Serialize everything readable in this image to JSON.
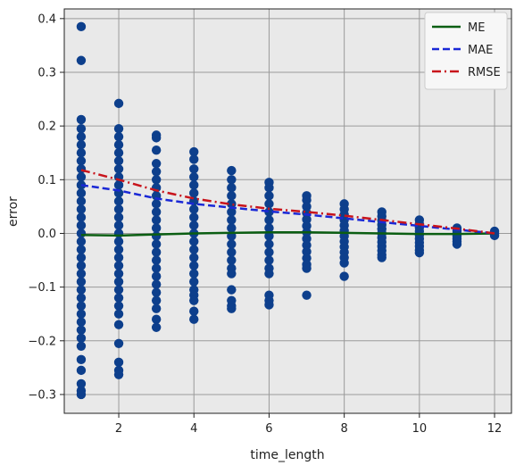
{
  "chart_data": {
    "type": "scatter",
    "xlabel": "time_length",
    "ylabel": "error",
    "xlim": [
      0.55,
      12.45
    ],
    "ylim": [
      -0.335,
      0.418
    ],
    "xticks": [
      2,
      4,
      6,
      8,
      10,
      12
    ],
    "xtick_labels": [
      "2",
      "4",
      "6",
      "8",
      "10",
      "12"
    ],
    "yticks": [
      -0.3,
      -0.2,
      -0.1,
      0.0,
      0.1,
      0.2,
      0.3,
      0.4
    ],
    "ytick_labels": [
      "−0.3",
      "−0.2",
      "−0.1",
      "0.0",
      "0.1",
      "0.2",
      "0.3",
      "0.4"
    ],
    "grid": true,
    "legend_position": "top-right",
    "background": "#e9e9e9",
    "scatter": {
      "color": "#0d3f8c",
      "points": [
        {
          "x": 1,
          "values": [
            0.385,
            0.322,
            0.212,
            0.195,
            0.18,
            0.165,
            0.15,
            0.135,
            0.12,
            0.105,
            0.09,
            0.075,
            0.06,
            0.045,
            0.03,
            0.015,
            0.0,
            -0.015,
            -0.03,
            -0.045,
            -0.06,
            -0.075,
            -0.09,
            -0.105,
            -0.12,
            -0.135,
            -0.15,
            -0.165,
            -0.18,
            -0.195,
            -0.21,
            -0.235,
            -0.255,
            -0.28,
            -0.293,
            -0.3
          ]
        },
        {
          "x": 2,
          "values": [
            0.242,
            0.195,
            0.18,
            0.165,
            0.15,
            0.135,
            0.12,
            0.105,
            0.09,
            0.075,
            0.06,
            0.045,
            0.03,
            0.015,
            0.0,
            -0.015,
            -0.03,
            -0.045,
            -0.06,
            -0.075,
            -0.09,
            -0.105,
            -0.12,
            -0.135,
            -0.15,
            -0.17,
            -0.205,
            -0.24,
            -0.255,
            -0.263
          ]
        },
        {
          "x": 3,
          "values": [
            0.183,
            0.178,
            0.155,
            0.13,
            0.115,
            0.1,
            0.085,
            0.07,
            0.055,
            0.04,
            0.025,
            0.01,
            -0.005,
            -0.02,
            -0.035,
            -0.05,
            -0.065,
            -0.08,
            -0.095,
            -0.11,
            -0.125,
            -0.14,
            -0.16,
            -0.175
          ]
        },
        {
          "x": 4,
          "values": [
            0.152,
            0.138,
            0.12,
            0.105,
            0.09,
            0.075,
            0.06,
            0.045,
            0.03,
            0.015,
            0.0,
            -0.015,
            -0.03,
            -0.045,
            -0.06,
            -0.075,
            -0.09,
            -0.105,
            -0.115,
            -0.125,
            -0.145,
            -0.16
          ]
        },
        {
          "x": 5,
          "values": [
            0.117,
            0.1,
            0.085,
            0.07,
            0.055,
            0.04,
            0.025,
            0.01,
            -0.005,
            -0.02,
            -0.035,
            -0.05,
            -0.065,
            -0.075,
            -0.105,
            -0.125,
            -0.135,
            -0.14
          ]
        },
        {
          "x": 6,
          "values": [
            0.095,
            0.085,
            0.07,
            0.055,
            0.04,
            0.025,
            0.01,
            -0.005,
            -0.02,
            -0.035,
            -0.05,
            -0.065,
            -0.075,
            -0.115,
            -0.125,
            -0.133
          ]
        },
        {
          "x": 7,
          "values": [
            0.07,
            0.062,
            0.05,
            0.038,
            0.026,
            0.014,
            0.002,
            -0.01,
            -0.022,
            -0.034,
            -0.046,
            -0.058,
            -0.065,
            -0.115
          ]
        },
        {
          "x": 8,
          "values": [
            0.055,
            0.045,
            0.035,
            0.025,
            0.015,
            0.005,
            -0.005,
            -0.015,
            -0.025,
            -0.035,
            -0.045,
            -0.055,
            -0.08
          ]
        },
        {
          "x": 9,
          "values": [
            0.04,
            0.032,
            0.024,
            0.016,
            0.008,
            0.0,
            -0.008,
            -0.016,
            -0.024,
            -0.032,
            -0.04,
            -0.045
          ]
        },
        {
          "x": 10,
          "values": [
            0.025,
            0.018,
            0.011,
            0.004,
            -0.003,
            -0.01,
            -0.017,
            -0.024,
            -0.031,
            -0.036
          ]
        },
        {
          "x": 11,
          "values": [
            0.01,
            0.005,
            0.0,
            -0.005,
            -0.01,
            -0.015,
            -0.02
          ]
        },
        {
          "x": 12,
          "values": [
            0.004,
            0.0,
            -0.004
          ]
        }
      ]
    },
    "series": [
      {
        "name": "ME",
        "color": "#0b5e12",
        "style": "solid",
        "x": [
          1,
          2,
          3,
          4,
          5,
          6,
          7,
          8,
          9,
          10,
          11,
          12
        ],
        "y": [
          -0.003,
          -0.004,
          -0.002,
          0.0,
          0.001,
          0.002,
          0.002,
          0.001,
          0.0,
          -0.001,
          -0.001,
          0.0
        ]
      },
      {
        "name": "MAE",
        "color": "#1a28d6",
        "style": "dashed",
        "x": [
          1,
          2,
          3,
          4,
          5,
          6,
          7,
          8,
          9,
          10,
          11,
          12
        ],
        "y": [
          0.09,
          0.08,
          0.065,
          0.055,
          0.048,
          0.041,
          0.035,
          0.028,
          0.021,
          0.014,
          0.007,
          0.0
        ]
      },
      {
        "name": "RMSE",
        "color": "#c8141c",
        "style": "dashdot",
        "x": [
          1,
          2,
          3,
          4,
          5,
          6,
          7,
          8,
          9,
          10,
          11,
          12
        ],
        "y": [
          0.118,
          0.1,
          0.08,
          0.065,
          0.054,
          0.046,
          0.04,
          0.033,
          0.025,
          0.017,
          0.009,
          0.0
        ]
      }
    ]
  }
}
